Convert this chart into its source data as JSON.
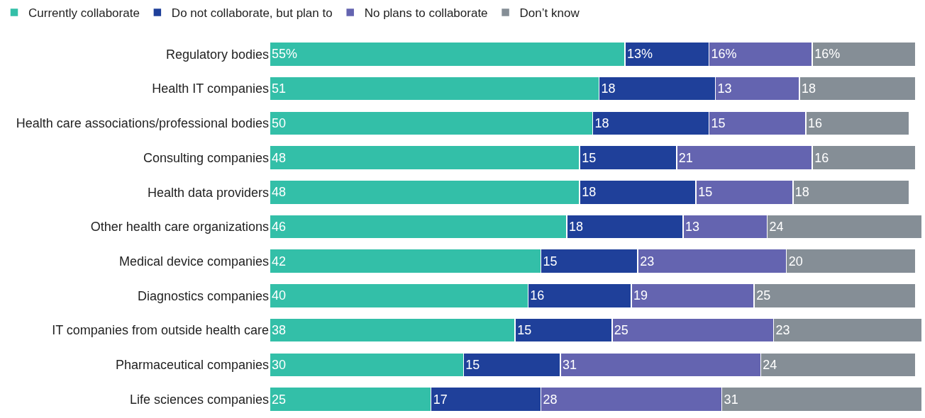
{
  "chart_data": {
    "type": "bar",
    "orientation": "horizontal",
    "stacked": true,
    "legend": "top left",
    "tick_labels": "y",
    "xlim": [
      0,
      101
    ],
    "categories": [
      "Regulatory bodies",
      "Health IT companies",
      "Health care associations/professional bodies",
      "Consulting companies",
      "Health data providers",
      "Other health care organizations",
      "Medical device companies",
      "Diagnostics companies",
      "IT companies from outside health care",
      "Pharmaceutical companies",
      "Life sciences companies"
    ],
    "series": [
      {
        "name": "Currently collaborate",
        "color": "#33bfa8",
        "values": [
          55,
          51,
          50,
          48,
          48,
          46,
          42,
          40,
          38,
          30,
          25
        ],
        "value_labels": [
          "55%",
          "51",
          "50",
          "48",
          "48",
          "46",
          "42",
          "40",
          "38",
          "30",
          "25"
        ]
      },
      {
        "name": "Do not collaborate, but plan to",
        "color": "#1f409a",
        "values": [
          13,
          18,
          18,
          15,
          18,
          18,
          15,
          16,
          15,
          15,
          17
        ],
        "value_labels": [
          "13%",
          "18",
          "18",
          "15",
          "18",
          "18",
          "15",
          "16",
          "15",
          "15",
          "17"
        ]
      },
      {
        "name": "No plans to collaborate",
        "color": "#6464b0",
        "values": [
          16,
          13,
          15,
          21,
          15,
          13,
          23,
          19,
          25,
          31,
          28
        ],
        "value_labels": [
          "16%",
          "13",
          "15",
          "21",
          "15",
          "13",
          "23",
          "19",
          "25",
          "31",
          "28"
        ]
      },
      {
        "name": "Don’t know",
        "color": "#858e96",
        "values": [
          16,
          18,
          16,
          16,
          18,
          24,
          20,
          25,
          23,
          24,
          31
        ],
        "value_labels": [
          "16%",
          "18",
          "16",
          "16",
          "18",
          "24",
          "20",
          "25",
          "23",
          "24",
          "31"
        ]
      }
    ]
  }
}
